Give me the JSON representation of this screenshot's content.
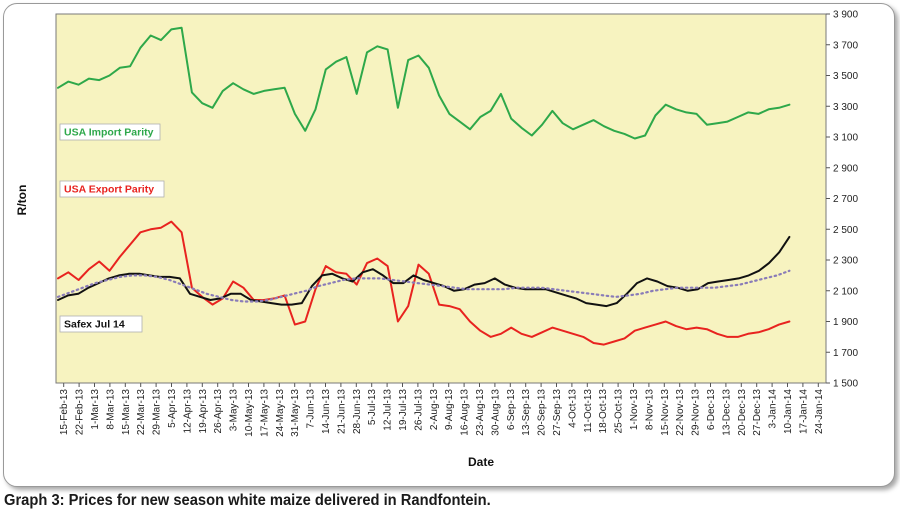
{
  "caption": "Graph 3: Prices for new season white maize delivered in Randfontein.",
  "chart_data": {
    "type": "line",
    "title": "",
    "xlabel": "Date",
    "ylabel": "R/ton",
    "ylim": [
      1500,
      3900
    ],
    "y_ticks": [
      "1 500",
      "1 700",
      "1 900",
      "2 100",
      "2 300",
      "2 500",
      "2 700",
      "2 900",
      "3 100",
      "3 300",
      "3 500",
      "3 700",
      "3 900"
    ],
    "x_ticks": [
      "15-Feb-13",
      "22-Feb-13",
      "1-Mar-13",
      "8-Mar-13",
      "15-Mar-13",
      "22-Mar-13",
      "29-Mar-13",
      "5-Apr-13",
      "12-Apr-13",
      "19-Apr-13",
      "26-Apr-13",
      "3-May-13",
      "10-May-13",
      "17-May-13",
      "24-May-13",
      "31-May-13",
      "7-Jun-13",
      "14-Jun-13",
      "21-Jun-13",
      "28-Jun-13",
      "5-Jul-13",
      "12-Jul-13",
      "19-Jul-13",
      "26-Jul-13",
      "2-Aug-13",
      "9-Aug-13",
      "16-Aug-13",
      "23-Aug-13",
      "30-Aug-13",
      "6-Sep-13",
      "13-Sep-13",
      "20-Sep-13",
      "27-Sep-13",
      "4-Oct-13",
      "11-Oct-13",
      "18-Oct-13",
      "25-Oct-13",
      "1-Nov-13",
      "8-Nov-13",
      "15-Nov-13",
      "22-Nov-13",
      "29-Nov-13",
      "6-Dec-13",
      "13-Dec-13",
      "20-Dec-13",
      "27-Dec-13",
      "3-Jan-14",
      "10-Jan-14",
      "17-Jan-14",
      "24-Jan-14"
    ],
    "grid": false,
    "plot_background": "#f7f3c0",
    "series": [
      {
        "name": "USA Import Parity",
        "color": "#2ea84a",
        "style": "solid",
        "values": [
          3420,
          3460,
          3440,
          3480,
          3470,
          3500,
          3550,
          3560,
          3680,
          3760,
          3730,
          3800,
          3810,
          3390,
          3320,
          3290,
          3400,
          3450,
          3410,
          3380,
          3400,
          3410,
          3420,
          3250,
          3140,
          3280,
          3540,
          3590,
          3620,
          3380,
          3650,
          3690,
          3670,
          3290,
          3600,
          3630,
          3550,
          3370,
          3250,
          3200,
          3150,
          3230,
          3270,
          3380,
          3220,
          3160,
          3110,
          3180,
          3270,
          3190,
          3150,
          3180,
          3210,
          3170,
          3140,
          3120,
          3090,
          3110,
          3240,
          3310,
          3280,
          3260,
          3250,
          3180,
          3190,
          3200,
          3230,
          3260,
          3250,
          3280,
          3290,
          3310
        ]
      },
      {
        "name": "USA Export Parity",
        "color": "#e8231f",
        "style": "solid",
        "values": [
          2180,
          2220,
          2170,
          2240,
          2290,
          2230,
          2320,
          2400,
          2480,
          2500,
          2510,
          2550,
          2480,
          2120,
          2060,
          2010,
          2050,
          2160,
          2120,
          2040,
          2040,
          2050,
          2070,
          1880,
          1900,
          2110,
          2260,
          2220,
          2210,
          2140,
          2280,
          2310,
          2260,
          1900,
          2000,
          2270,
          2210,
          2010,
          2000,
          1980,
          1900,
          1840,
          1800,
          1820,
          1860,
          1820,
          1800,
          1830,
          1860,
          1840,
          1820,
          1800,
          1760,
          1750,
          1770,
          1790,
          1840,
          1860,
          1880,
          1900,
          1870,
          1850,
          1860,
          1850,
          1820,
          1800,
          1800,
          1820,
          1830,
          1850,
          1880,
          1900
        ]
      },
      {
        "name": "Safex Jul 14",
        "color": "#111111",
        "style": "solid",
        "values": [
          2040,
          2070,
          2080,
          2120,
          2150,
          2180,
          2200,
          2210,
          2210,
          2200,
          2190,
          2190,
          2180,
          2080,
          2060,
          2040,
          2050,
          2080,
          2080,
          2040,
          2030,
          2020,
          2010,
          2010,
          2020,
          2130,
          2200,
          2210,
          2180,
          2160,
          2220,
          2240,
          2200,
          2150,
          2150,
          2200,
          2170,
          2150,
          2130,
          2100,
          2110,
          2140,
          2150,
          2180,
          2140,
          2120,
          2110,
          2110,
          2110,
          2090,
          2070,
          2050,
          2020,
          2010,
          2000,
          2020,
          2080,
          2150,
          2180,
          2160,
          2130,
          2120,
          2100,
          2110,
          2150,
          2160,
          2170,
          2180,
          2200,
          2230,
          2280,
          2350,
          2450
        ]
      },
      {
        "name": "",
        "color": "#8a7cb8",
        "style": "dotted",
        "values": [
          2060,
          2090,
          2120,
          2150,
          2170,
          2190,
          2200,
          2200,
          2190,
          2170,
          2140,
          2110,
          2080,
          2060,
          2040,
          2030,
          2030,
          2040,
          2060,
          2080,
          2100,
          2130,
          2150,
          2170,
          2180,
          2180,
          2180,
          2170,
          2160,
          2150,
          2140,
          2130,
          2120,
          2110,
          2110,
          2110,
          2110,
          2120,
          2120,
          2120,
          2110,
          2100,
          2090,
          2080,
          2070,
          2060,
          2070,
          2080,
          2100,
          2110,
          2120,
          2120,
          2120,
          2120,
          2130,
          2140,
          2160,
          2180,
          2200,
          2230
        ]
      }
    ]
  }
}
